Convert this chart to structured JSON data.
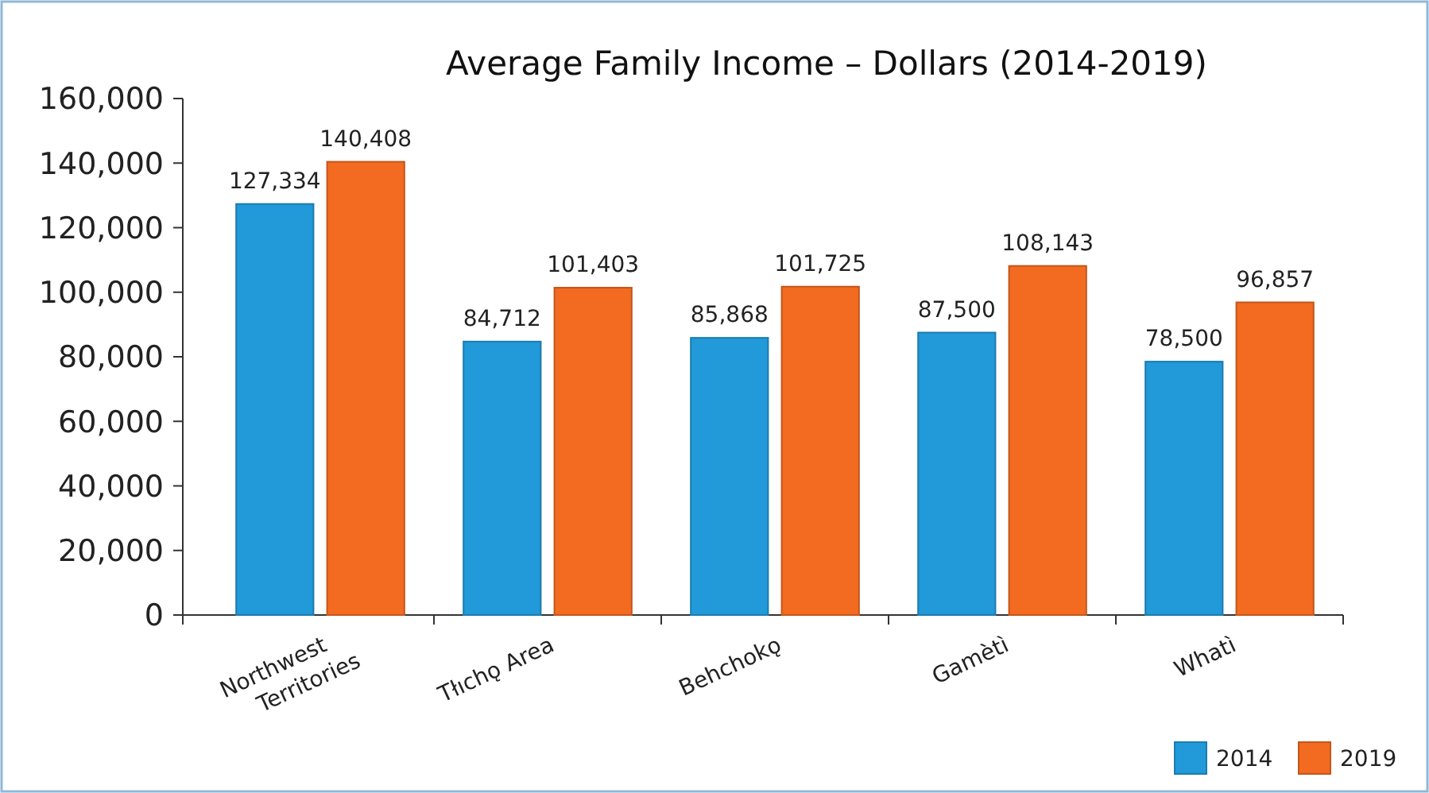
{
  "chart_data": {
    "type": "bar",
    "title": "Average Family Income – Dollars (2014-2019)",
    "categories": [
      "Northwest\nTerritories",
      "Tłıchǫ Area",
      "Behchokǫ",
      "Gamètì",
      "Whatì"
    ],
    "series": [
      {
        "name": "2014",
        "color": "#2299d8",
        "values": [
          127334,
          84712,
          85868,
          87500,
          78500
        ],
        "value_labels": [
          "127,334",
          "84,712",
          "85,868",
          "87,500",
          "78,500"
        ]
      },
      {
        "name": "2019",
        "color": "#f26b21",
        "values": [
          140408,
          101403,
          101725,
          108143,
          96857
        ],
        "value_labels": [
          "140,408",
          "101,403",
          "101,725",
          "108,143",
          "96,857"
        ]
      }
    ],
    "ylim": [
      0,
      160000
    ],
    "yticks": [
      {
        "value": 0,
        "label": "0"
      },
      {
        "value": 20000,
        "label": "20,000"
      },
      {
        "value": 40000,
        "label": "40,000"
      },
      {
        "value": 60000,
        "label": "60,000"
      },
      {
        "value": 80000,
        "label": "80,000"
      },
      {
        "value": 100000,
        "label": "100,000"
      },
      {
        "value": 120000,
        "label": "120,000"
      },
      {
        "value": 140000,
        "label": "140,000"
      },
      {
        "value": 160000,
        "label": "160,000"
      }
    ],
    "legend": "bottom right",
    "grid": false
  }
}
